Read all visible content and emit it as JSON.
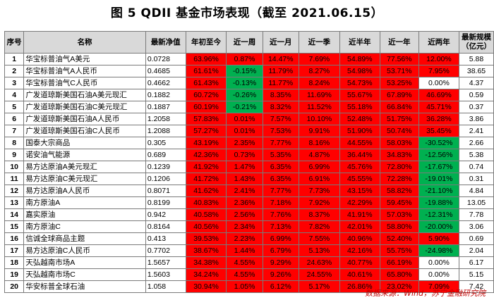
{
  "title": "图 5 QDII 基金市场表现（截至 2021.06.15）",
  "colors": {
    "positive": "#ff0000",
    "negative": "#00b050",
    "header_bg": "#d9d9d9"
  },
  "headers": [
    "序号",
    "名称",
    "最新净值",
    "年初至今",
    "近一周",
    "近一月",
    "近一季",
    "近半年",
    "近一年",
    "近两年",
    "最新规模（亿元）"
  ],
  "rows": [
    {
      "idx": "1",
      "name": "华宝标普油气A美元",
      "nav": "0.0728",
      "ytd": "63.96%",
      "w1": "0.87%",
      "m1": "14.47%",
      "q1": "7.69%",
      "h1": "54.89%",
      "y1": "77.56%",
      "y2": "12.00%",
      "size": "5.88"
    },
    {
      "idx": "2",
      "name": "华宝标普油气A人民币",
      "nav": "0.4685",
      "ytd": "61.61%",
      "w1": "-0.15%",
      "m1": "11.79%",
      "q1": "8.27%",
      "h1": "54.98%",
      "y1": "53.71%",
      "y2": "7.95%",
      "size": "38.65"
    },
    {
      "idx": "3",
      "name": "华宝标普油气C人民币",
      "nav": "0.4662",
      "ytd": "61.43%",
      "w1": "-0.13%",
      "m1": "11.77%",
      "q1": "8.24%",
      "h1": "54.73%",
      "y1": "53.25%",
      "y2": "0.00%",
      "size": "4.37"
    },
    {
      "idx": "4",
      "name": "广发道琼斯美国石油A美元现汇",
      "nav": "0.1882",
      "ytd": "60.72%",
      "w1": "-0.26%",
      "m1": "8.35%",
      "q1": "11.69%",
      "h1": "55.67%",
      "y1": "67.89%",
      "y2": "46.69%",
      "size": "0.59"
    },
    {
      "idx": "5",
      "name": "广发道琼斯美国石油C美元现汇",
      "nav": "0.1887",
      "ytd": "60.19%",
      "w1": "-0.21%",
      "m1": "8.32%",
      "q1": "11.52%",
      "h1": "55.18%",
      "y1": "66.84%",
      "y2": "45.71%",
      "size": "0.37"
    },
    {
      "idx": "6",
      "name": "广发道琼斯美国石油A人民币",
      "nav": "1.2058",
      "ytd": "57.83%",
      "w1": "0.01%",
      "m1": "7.57%",
      "q1": "10.10%",
      "h1": "52.48%",
      "y1": "51.75%",
      "y2": "36.28%",
      "size": "3.86"
    },
    {
      "idx": "7",
      "name": "广发道琼斯美国石油C人民币",
      "nav": "1.2088",
      "ytd": "57.27%",
      "w1": "0.01%",
      "m1": "7.53%",
      "q1": "9.91%",
      "h1": "51.90%",
      "y1": "50.74%",
      "y2": "35.45%",
      "size": "2.41"
    },
    {
      "idx": "8",
      "name": "国泰大宗商品",
      "nav": "0.305",
      "ytd": "43.19%",
      "w1": "2.35%",
      "m1": "7.77%",
      "q1": "8.16%",
      "h1": "44.55%",
      "y1": "58.03%",
      "y2": "-30.52%",
      "size": "2.66"
    },
    {
      "idx": "9",
      "name": "诺安油气能源",
      "nav": "0.689",
      "ytd": "42.36%",
      "w1": "0.73%",
      "m1": "5.35%",
      "q1": "4.87%",
      "h1": "36.44%",
      "y1": "34.83%",
      "y2": "-12.56%",
      "size": "5.38"
    },
    {
      "idx": "10",
      "name": "易方达原油A美元现汇",
      "nav": "0.1239",
      "ytd": "41.92%",
      "w1": "1.47%",
      "m1": "6.35%",
      "q1": "6.99%",
      "h1": "45.76%",
      "y1": "72.80%",
      "y2": "-17.67%",
      "size": "0.74"
    },
    {
      "idx": "11",
      "name": "易方达原油C美元现汇",
      "nav": "0.1206",
      "ytd": "41.72%",
      "w1": "1.43%",
      "m1": "6.35%",
      "q1": "6.91%",
      "h1": "45.55%",
      "y1": "72.28%",
      "y2": "-19.01%",
      "size": "0.31"
    },
    {
      "idx": "12",
      "name": "易方达原油A人民币",
      "nav": "0.8071",
      "ytd": "41.62%",
      "w1": "2.41%",
      "m1": "7.77%",
      "q1": "7.73%",
      "h1": "43.15%",
      "y1": "58.82%",
      "y2": "-21.10%",
      "size": "4.84"
    },
    {
      "idx": "13",
      "name": "南方原油A",
      "nav": "0.8199",
      "ytd": "40.83%",
      "w1": "2.36%",
      "m1": "7.18%",
      "q1": "7.92%",
      "h1": "42.29%",
      "y1": "59.45%",
      "y2": "-19.88%",
      "size": "13.05"
    },
    {
      "idx": "14",
      "name": "嘉实原油",
      "nav": "0.942",
      "ytd": "40.58%",
      "w1": "2.56%",
      "m1": "7.76%",
      "q1": "8.37%",
      "h1": "41.91%",
      "y1": "57.03%",
      "y2": "-12.31%",
      "size": "7.78"
    },
    {
      "idx": "15",
      "name": "南方原油C",
      "nav": "0.8164",
      "ytd": "40.56%",
      "w1": "2.34%",
      "m1": "7.13%",
      "q1": "7.82%",
      "h1": "42.01%",
      "y1": "58.80%",
      "y2": "-20.00%",
      "size": "3.06"
    },
    {
      "idx": "16",
      "name": "信诚全球商品主题",
      "nav": "0.413",
      "ytd": "39.53%",
      "w1": "2.23%",
      "m1": "6.99%",
      "q1": "7.55%",
      "h1": "40.96%",
      "y1": "52.40%",
      "y2": "5.90%",
      "size": "0.69"
    },
    {
      "idx": "17",
      "name": "易方达原油C人民币",
      "nav": "0.7702",
      "ytd": "38.67%",
      "w1": "1.44%",
      "m1": "6.79%",
      "q1": "5.13%",
      "h1": "42.16%",
      "y1": "55.75%",
      "y2": "-24.98%",
      "size": "2.04"
    },
    {
      "idx": "18",
      "name": "天弘越南市场A",
      "nav": "1.5657",
      "ytd": "34.38%",
      "w1": "4.55%",
      "m1": "9.29%",
      "q1": "24.63%",
      "h1": "40.77%",
      "y1": "66.19%",
      "y2": "0.00%",
      "size": "6.17"
    },
    {
      "idx": "19",
      "name": "天弘越南市场C",
      "nav": "1.5603",
      "ytd": "34.24%",
      "w1": "4.55%",
      "m1": "9.26%",
      "q1": "24.55%",
      "h1": "40.61%",
      "y1": "65.80%",
      "y2": "0.00%",
      "size": "5.15"
    },
    {
      "idx": "20",
      "name": "华安标普全球石油",
      "nav": "1.058",
      "ytd": "30.94%",
      "w1": "1.05%",
      "m1": "6.12%",
      "q1": "5.17%",
      "h1": "26.86%",
      "y1": "23.02%",
      "y2": "7.09%",
      "size": "7.42"
    }
  ],
  "source": "数据来源：Wind，苏宁金融研究院"
}
